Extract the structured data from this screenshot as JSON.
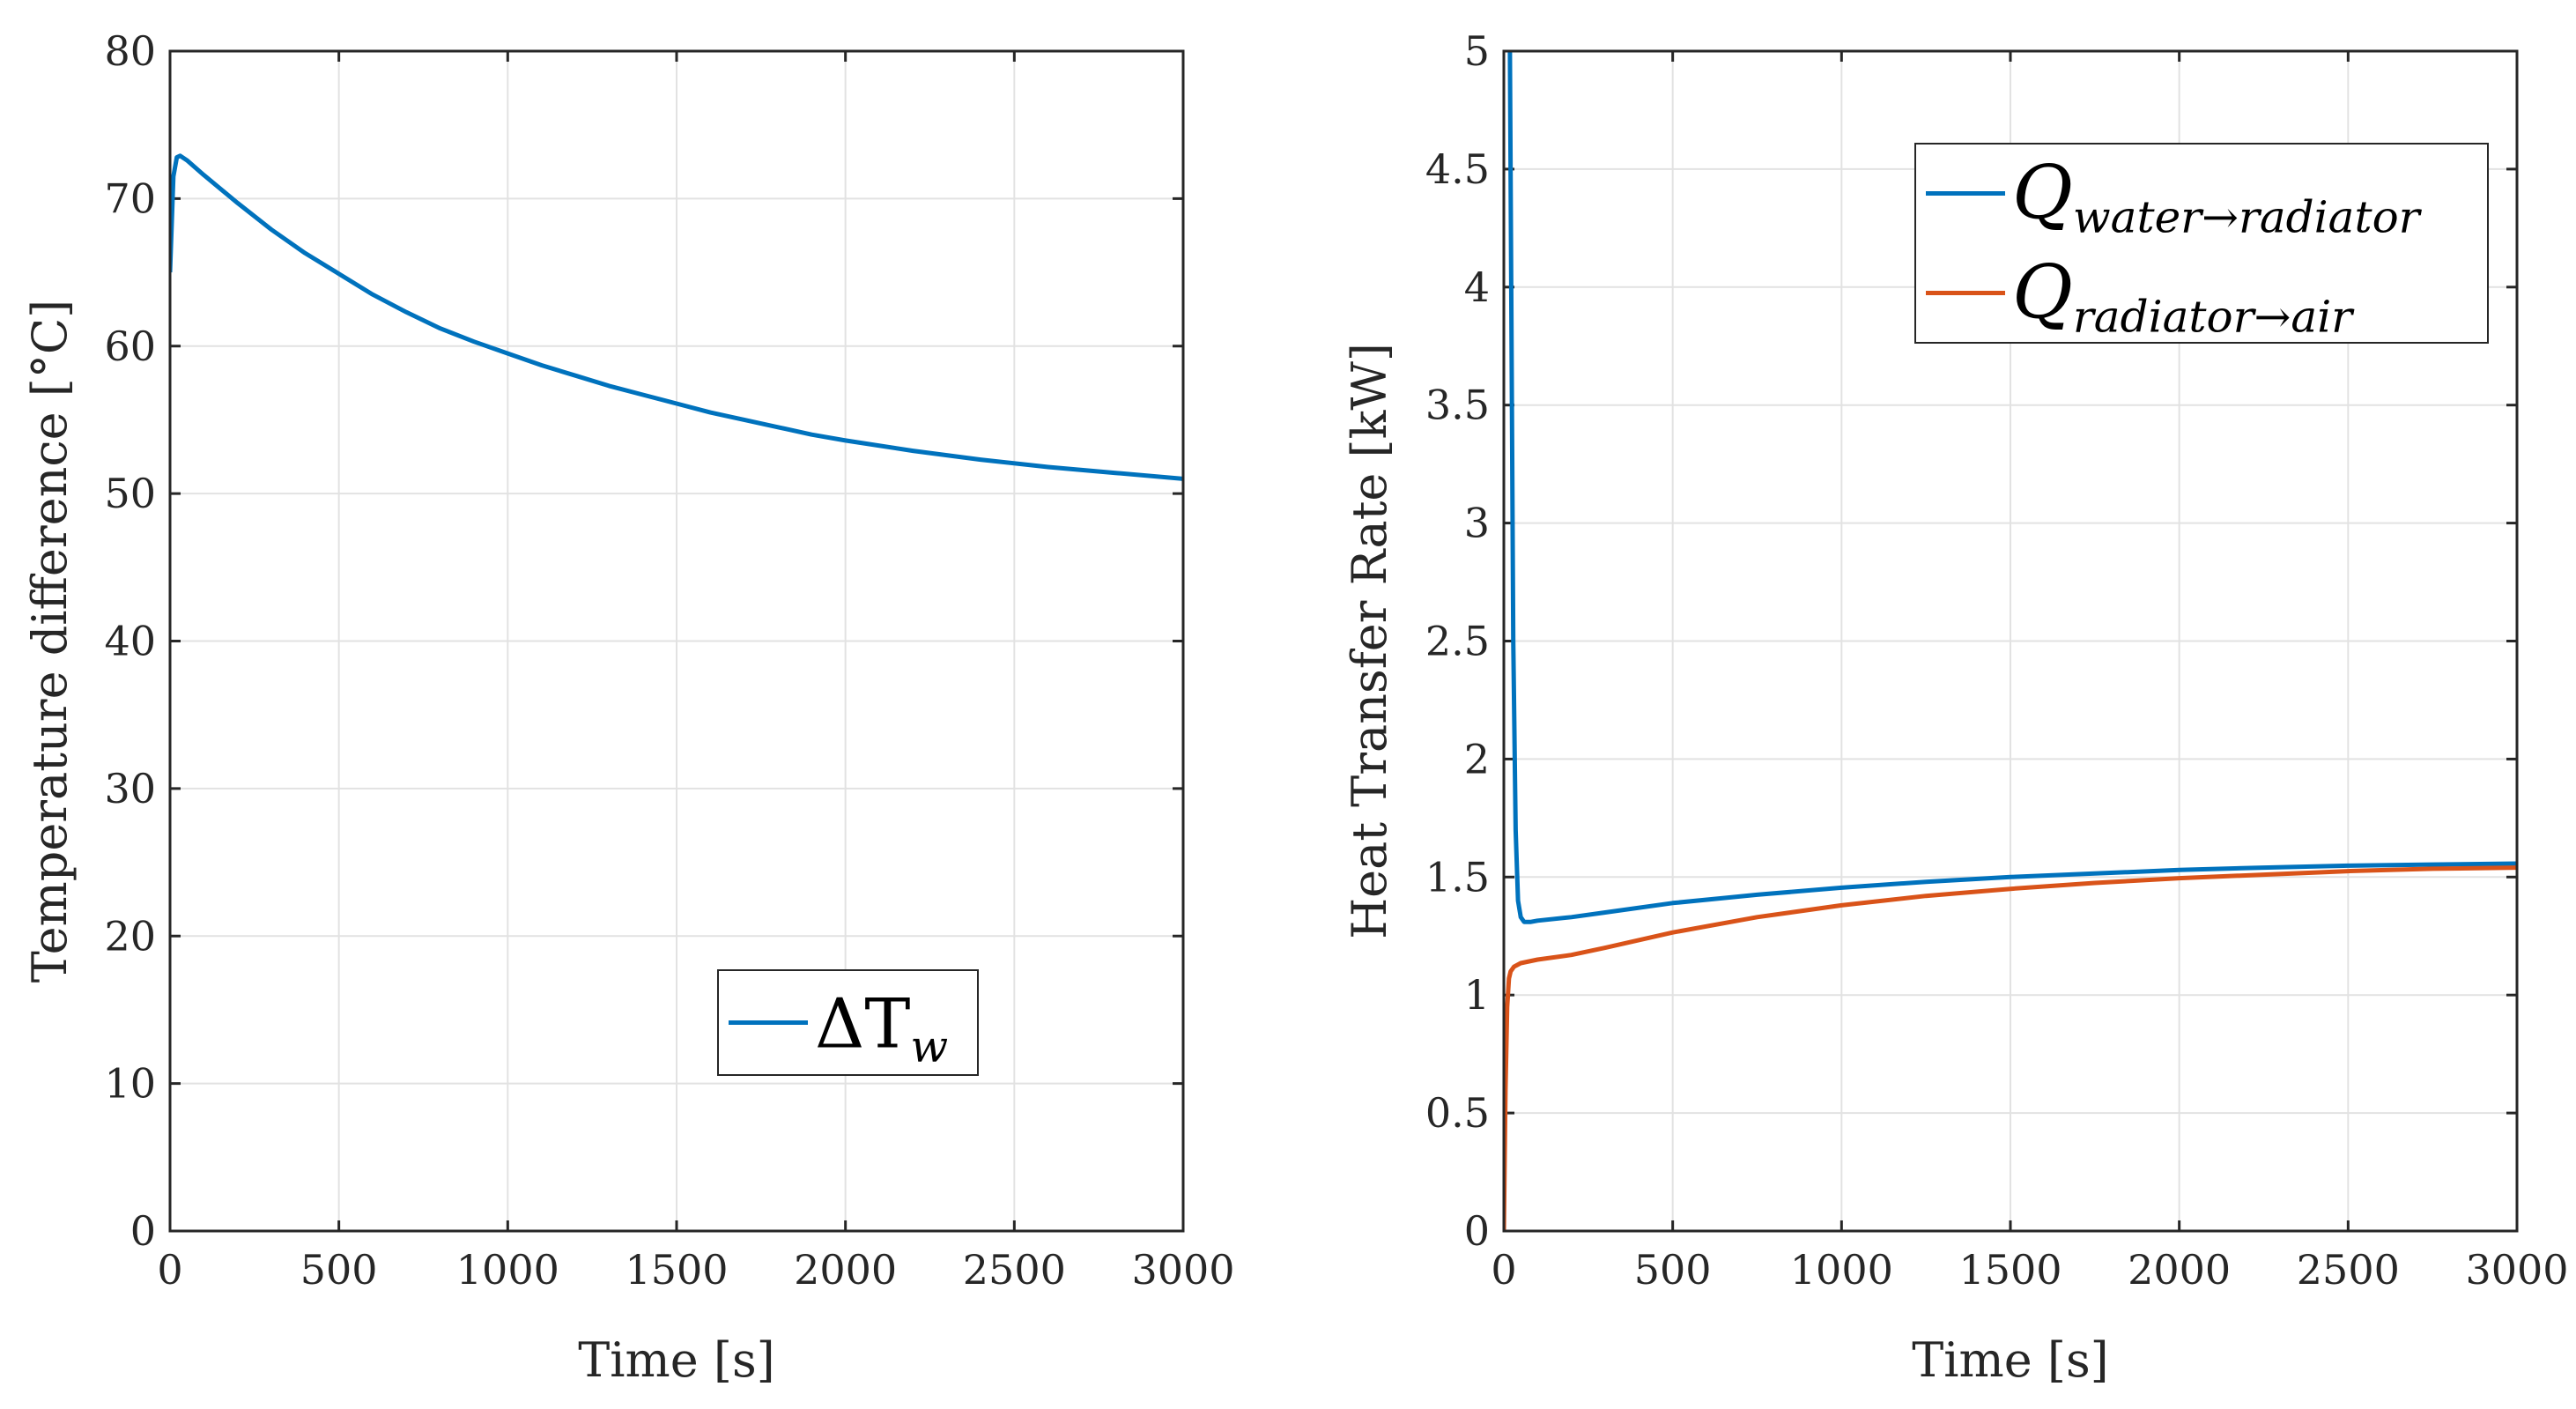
{
  "chart_data": [
    {
      "id": "left",
      "type": "line",
      "xlabel": "Time [s]",
      "ylabel": "Temperature difference [°C]",
      "xlim": [
        0,
        3000
      ],
      "ylim": [
        0,
        80
      ],
      "xticks": [
        "0",
        "500",
        "1000",
        "1500",
        "2000",
        "2500",
        "3000"
      ],
      "yticks": [
        "0",
        "10",
        "20",
        "30",
        "40",
        "50",
        "60",
        "70",
        "80"
      ],
      "grid": true,
      "legend_position": "bottom-right",
      "series": [
        {
          "name_base": "ΔT",
          "name_sub": "w",
          "color": "#0072BD",
          "x": [
            0,
            10,
            20,
            30,
            50,
            100,
            200,
            300,
            400,
            500,
            600,
            700,
            800,
            900,
            1000,
            1100,
            1200,
            1300,
            1400,
            1500,
            1600,
            1700,
            1800,
            1900,
            2000,
            2200,
            2400,
            2600,
            2800,
            3000
          ],
          "y": [
            65,
            71.5,
            72.8,
            72.9,
            72.6,
            71.6,
            69.7,
            67.9,
            66.3,
            64.9,
            63.5,
            62.3,
            61.2,
            60.3,
            59.5,
            58.7,
            58.0,
            57.3,
            56.7,
            56.1,
            55.5,
            55.0,
            54.5,
            54.0,
            53.6,
            52.9,
            52.3,
            51.8,
            51.4,
            51.0
          ]
        }
      ]
    },
    {
      "id": "right",
      "type": "line",
      "xlabel": "Time [s]",
      "ylabel": "Heat Transfer Rate [kW]",
      "xlim": [
        0,
        3000
      ],
      "ylim": [
        0,
        5
      ],
      "xticks": [
        "0",
        "500",
        "1000",
        "1500",
        "2000",
        "2500",
        "3000"
      ],
      "yticks": [
        "0",
        "0.5",
        "1",
        "1.5",
        "2",
        "2.5",
        "3",
        "3.5",
        "4",
        "4.5",
        "5"
      ],
      "grid": true,
      "legend_position": "top-right",
      "series": [
        {
          "name_base": "Q",
          "name_sub": "water→radiator",
          "color": "#0072BD",
          "x": [
            18,
            22,
            28,
            35,
            42,
            50,
            60,
            80,
            100,
            200,
            300,
            500,
            750,
            1000,
            1250,
            1500,
            1750,
            2000,
            2250,
            2500,
            2750,
            3000
          ],
          "y": [
            5.0,
            4.0,
            2.5,
            1.7,
            1.4,
            1.33,
            1.31,
            1.31,
            1.315,
            1.33,
            1.35,
            1.39,
            1.425,
            1.455,
            1.48,
            1.5,
            1.515,
            1.53,
            1.54,
            1.548,
            1.553,
            1.557
          ]
        },
        {
          "name_base": "Q",
          "name_sub": "radiator→air",
          "color": "#D95319",
          "x": [
            0,
            5,
            10,
            15,
            20,
            30,
            50,
            100,
            200,
            300,
            500,
            750,
            1000,
            1250,
            1500,
            1750,
            2000,
            2250,
            2500,
            2750,
            3000
          ],
          "y": [
            0,
            0.6,
            0.95,
            1.07,
            1.1,
            1.12,
            1.135,
            1.15,
            1.17,
            1.2,
            1.265,
            1.33,
            1.38,
            1.42,
            1.45,
            1.475,
            1.495,
            1.51,
            1.525,
            1.535,
            1.54
          ]
        }
      ]
    }
  ]
}
